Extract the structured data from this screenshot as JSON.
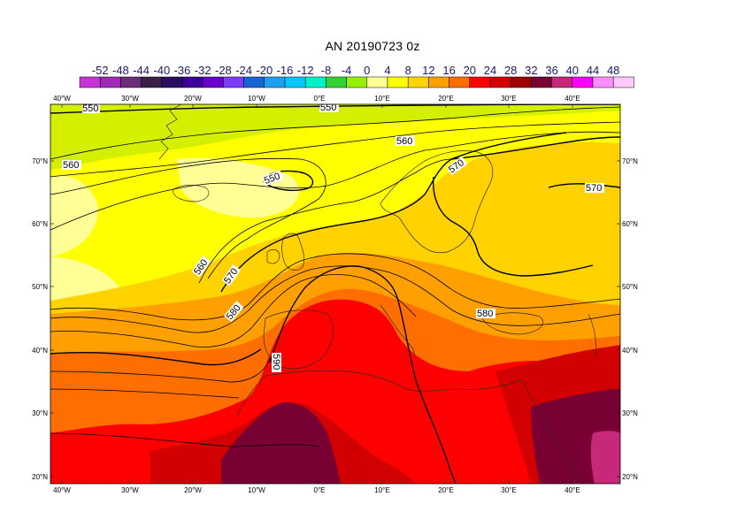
{
  "title": "AN  20190723 0z",
  "legend": {
    "labels": [
      "-52",
      "-48",
      "-44",
      "-40",
      "-36",
      "-32",
      "-28",
      "-24",
      "-20",
      "-16",
      "-12",
      "-8",
      "-4",
      "0",
      "4",
      "8",
      "12",
      "16",
      "20",
      "24",
      "28",
      "32",
      "36",
      "40",
      "44",
      "48"
    ],
    "colors": [
      "#c832d7",
      "#a02ab4",
      "#6b2e79",
      "#3b1f4a",
      "#2a0e66",
      "#3c0099",
      "#6a00c8",
      "#7b3cff",
      "#1464d2",
      "#1ea0f0",
      "#00c8ff",
      "#00f0c8",
      "#32d232",
      "#96f000",
      "#ffff96",
      "#ffff00",
      "#ffd200",
      "#ffa000",
      "#ff6e00",
      "#ff0000",
      "#d20000",
      "#a00000",
      "#780032",
      "#c82878",
      "#ff00ff",
      "#ff8cff",
      "#ffc8ff"
    ]
  },
  "axes": {
    "lon_labels": [
      "40°W",
      "30°W",
      "20°W",
      "10°W",
      "0°E",
      "10°E",
      "20°E",
      "30°E",
      "40°E"
    ],
    "lat_labels": [
      "70°N",
      "60°N",
      "50°N",
      "40°N",
      "30°N",
      "20°N"
    ]
  },
  "contours": {
    "labels": [
      "550",
      "550",
      "560",
      "560",
      "550",
      "560",
      "570",
      "570",
      "570",
      "580",
      "580",
      "590"
    ]
  }
}
